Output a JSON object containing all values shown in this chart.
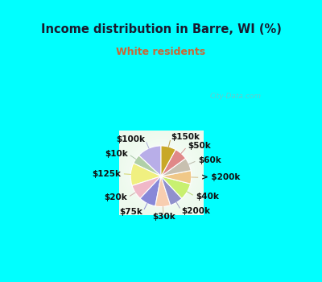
{
  "title": "Income distribution in Barre, WI (%)",
  "subtitle": "White residents",
  "title_color": "#1a1a2e",
  "subtitle_color": "#cc6633",
  "background_cyan": "#00ffff",
  "watermark": "City-Data.com",
  "labels": [
    "$100k",
    "$10k",
    "$125k",
    "$20k",
    "$75k",
    "$30k",
    "$200k",
    "$40k",
    "> $200k",
    "$60k",
    "$50k",
    "$150k"
  ],
  "values": [
    13,
    5,
    12,
    8,
    9,
    8,
    7,
    9,
    7,
    7,
    7,
    8
  ],
  "colors": [
    "#b8aee8",
    "#b0d0a8",
    "#f0f080",
    "#f0b8c8",
    "#8888d8",
    "#f8ceb0",
    "#9090cc",
    "#c8f070",
    "#f0c888",
    "#c8c0b0",
    "#e08888",
    "#c8a828"
  ],
  "startangle": 90,
  "label_fontsize": 7.5
}
